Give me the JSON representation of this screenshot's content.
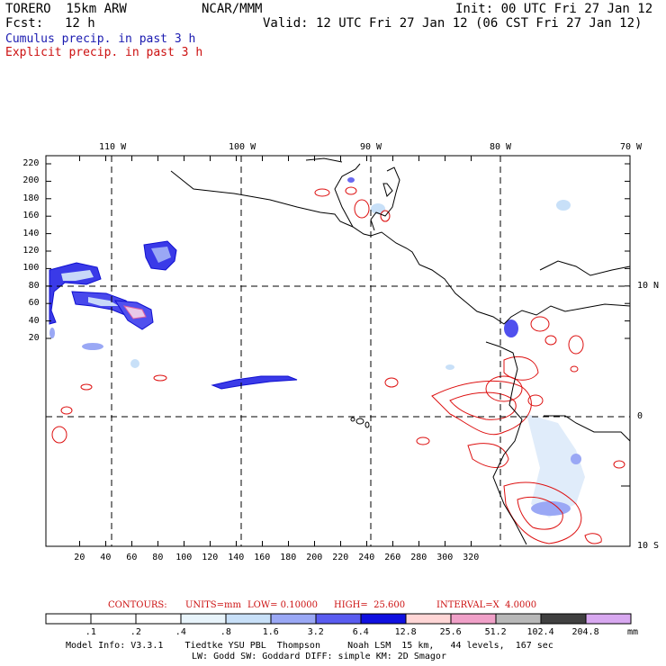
{
  "header": {
    "model": "TORERO  15km ARW",
    "org": "NCAR/MMM",
    "init": "Init: 00 UTC Fri 27 Jan 12",
    "fcst_label": "Fcst:",
    "fcst_value": "12 h",
    "valid": "Valid: 12 UTC Fri 27 Jan 12 (06 CST Fri 27 Jan 12)"
  },
  "fields": {
    "cumulus": "Cumulus precip. in past 3 h",
    "explicit": "Explicit precip. in past 3 h"
  },
  "axes": {
    "lon_labels": [
      "110 W",
      "100 W",
      "90 W",
      "80 W",
      "70 W"
    ],
    "lat_labels": [
      "10 N",
      "0",
      "10 S"
    ],
    "x_ticks": [
      "20",
      "40",
      "60",
      "80",
      "100",
      "120",
      "140",
      "160",
      "180",
      "200",
      "220",
      "240",
      "260",
      "280",
      "300",
      "320"
    ],
    "y_ticks": [
      "220",
      "200",
      "180",
      "160",
      "140",
      "120",
      "100",
      "80",
      "60",
      "40",
      "20"
    ]
  },
  "contours": {
    "label": "CONTOURS:",
    "units": "UNITS=mm",
    "low": "LOW= 0.10000",
    "high": "HIGH=  25.600",
    "interval": "INTERVAL=X  4.0000"
  },
  "legend": {
    "labels": [
      ".1",
      ".2",
      ".4",
      ".8",
      "1.6",
      "3.2",
      "6.4",
      "12.8",
      "25.6",
      "51.2",
      "102.4",
      "204.8"
    ],
    "unit": "mm",
    "colors": [
      "#ffffff",
      "#ffffff",
      "#ffffff",
      "#e8f4fb",
      "#c8e0f8",
      "#9aa8f5",
      "#5a5cf0",
      "#1010e0",
      "#ffd6d6",
      "#f0a0c8",
      "#b8b8b8",
      "#404040",
      "#d8a8f0"
    ]
  },
  "model_info": {
    "line1": "Model Info: V3.3.1    Tiedtke YSU PBL  Thompson     Noah LSM  15 km,   44 levels,  167 sec",
    "line2": "LW: Godd SW: Goddard DIFF: simple KM: 2D Smagor"
  }
}
